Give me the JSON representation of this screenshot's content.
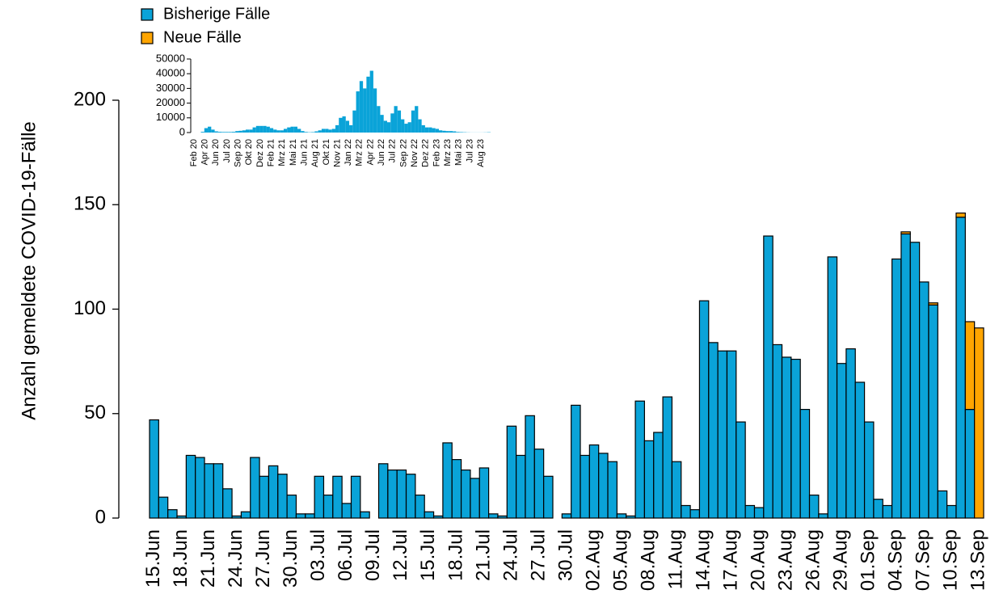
{
  "chart_data": [
    {
      "type": "stacked_bar",
      "y_label": "Anzahl gemeldete COVID-19-Fälle",
      "categories": [
        "15.Jun",
        null,
        null,
        "18.Jun",
        null,
        null,
        "21.Jun",
        null,
        null,
        "24.Jun",
        null,
        null,
        "27.Jun",
        null,
        null,
        "30.Jun",
        null,
        null,
        "03.Jul",
        null,
        null,
        "06.Jul",
        null,
        null,
        "09.Jul",
        null,
        null,
        "12.Jul",
        null,
        null,
        "15.Jul",
        null,
        null,
        "18.Jul",
        null,
        null,
        "21.Jul",
        null,
        null,
        "24.Jul",
        null,
        null,
        "27.Jul",
        null,
        null,
        "30.Jul",
        null,
        null,
        "02.Aug",
        null,
        null,
        "05.Aug",
        null,
        null,
        "08.Aug",
        null,
        null,
        "11.Aug",
        null,
        null,
        "14.Aug",
        null,
        null,
        "17.Aug",
        null,
        null,
        "20.Aug",
        null,
        null,
        "23.Aug",
        null,
        null,
        "26.Aug",
        null,
        null,
        "29.Aug",
        null,
        null,
        "01.Sep",
        null,
        null,
        "04.Sep",
        null,
        null,
        "07.Sep",
        null,
        null,
        "10.Sep",
        null,
        null,
        "13.Sep"
      ],
      "series": [
        {
          "name": "Bisherige Fälle",
          "color": "#0aa3d8",
          "values": [
            47,
            10,
            4,
            1,
            30,
            29,
            26,
            26,
            14,
            1,
            3,
            29,
            20,
            25,
            21,
            11,
            2,
            2,
            20,
            11,
            20,
            7,
            20,
            3,
            0,
            26,
            23,
            23,
            21,
            11,
            3,
            1,
            36,
            28,
            23,
            19,
            24,
            2,
            1,
            44,
            30,
            49,
            33,
            20,
            0,
            2,
            54,
            30,
            35,
            31,
            27,
            2,
            1,
            56,
            37,
            41,
            58,
            27,
            6,
            4,
            104,
            84,
            80,
            80,
            46,
            6,
            5,
            135,
            83,
            77,
            76,
            52,
            11,
            2,
            125,
            74,
            81,
            65,
            46,
            9,
            6,
            124,
            136,
            132,
            113,
            102,
            13,
            6,
            144,
            52,
            0
          ]
        },
        {
          "name": "Neue Fälle",
          "color": "#ffa500",
          "values": [
            0,
            0,
            0,
            0,
            0,
            0,
            0,
            0,
            0,
            0,
            0,
            0,
            0,
            0,
            0,
            0,
            0,
            0,
            0,
            0,
            0,
            0,
            0,
            0,
            0,
            0,
            0,
            0,
            0,
            0,
            0,
            0,
            0,
            0,
            0,
            0,
            0,
            0,
            0,
            0,
            0,
            0,
            0,
            0,
            0,
            0,
            0,
            0,
            0,
            0,
            0,
            0,
            0,
            0,
            0,
            0,
            0,
            0,
            0,
            0,
            0,
            0,
            0,
            0,
            0,
            0,
            0,
            0,
            0,
            0,
            0,
            0,
            0,
            0,
            0,
            0,
            0,
            0,
            0,
            0,
            0,
            0,
            1,
            0,
            0,
            1,
            0,
            0,
            2,
            42,
            91
          ]
        }
      ],
      "ylim": [
        0,
        200
      ],
      "yticks": [
        0,
        50,
        100,
        150,
        200
      ],
      "legend": "top-left"
    },
    {
      "type": "histogram",
      "color": "#0aa3d8",
      "values": [
        0,
        0,
        500,
        3000,
        4000,
        2000,
        800,
        500,
        400,
        400,
        400,
        500,
        1000,
        1200,
        1500,
        2000,
        2000,
        3500,
        4500,
        4500,
        4500,
        4000,
        3000,
        2000,
        1500,
        1500,
        2500,
        3500,
        4000,
        4000,
        2500,
        1000,
        400,
        200,
        300,
        800,
        1500,
        2500,
        2500,
        2000,
        2500,
        5000,
        10000,
        11000,
        8000,
        5000,
        15000,
        28000,
        35000,
        30000,
        38000,
        42000,
        30000,
        18000,
        12000,
        8000,
        7000,
        13000,
        18000,
        15000,
        9000,
        6000,
        7000,
        15000,
        18000,
        9000,
        5000,
        3500,
        3500,
        3000,
        2500,
        1500,
        1200,
        1000,
        1000,
        800,
        400,
        300,
        200,
        100,
        50,
        50,
        50,
        50,
        100,
        200
      ],
      "xlim": [
        0,
        86
      ],
      "xticks": [
        {
          "value": 0,
          "label": "Feb 20"
        },
        {
          "value": 3.2,
          "label": "Apr 20"
        },
        {
          "value": 6.4,
          "label": "Jun 20"
        },
        {
          "value": 9.6,
          "label": "Jul 20"
        },
        {
          "value": 12.8,
          "label": "Sep 20"
        },
        {
          "value": 16,
          "label": "Okt 20"
        },
        {
          "value": 19.2,
          "label": "Dez 20"
        },
        {
          "value": 22.4,
          "label": "Feb 21"
        },
        {
          "value": 25.6,
          "label": "Mrz 21"
        },
        {
          "value": 28.8,
          "label": "Mai 21"
        },
        {
          "value": 32,
          "label": "Jun 21"
        },
        {
          "value": 35.2,
          "label": "Aug 21"
        },
        {
          "value": 38.4,
          "label": "Okt 21"
        },
        {
          "value": 41.6,
          "label": "Nov 21"
        },
        {
          "value": 44.8,
          "label": "Jan 22"
        },
        {
          "value": 48,
          "label": "Mrz 22"
        },
        {
          "value": 51.2,
          "label": "Apr 22"
        },
        {
          "value": 54.4,
          "label": "Jun 22"
        },
        {
          "value": 57.6,
          "label": "Jul 22"
        },
        {
          "value": 60.8,
          "label": "Sep 22"
        },
        {
          "value": 64,
          "label": "Nov 22"
        },
        {
          "value": 67.2,
          "label": "Dez 22"
        },
        {
          "value": 70.4,
          "label": "Feb 23"
        },
        {
          "value": 73.6,
          "label": "Mrz 23"
        },
        {
          "value": 76.8,
          "label": "Mai 23"
        },
        {
          "value": 80,
          "label": "Jul 23"
        },
        {
          "value": 83.2,
          "label": "Aug 23"
        }
      ],
      "ylim": [
        0,
        50000
      ],
      "yticks": [
        0,
        10000,
        20000,
        30000,
        40000,
        50000
      ]
    }
  ]
}
